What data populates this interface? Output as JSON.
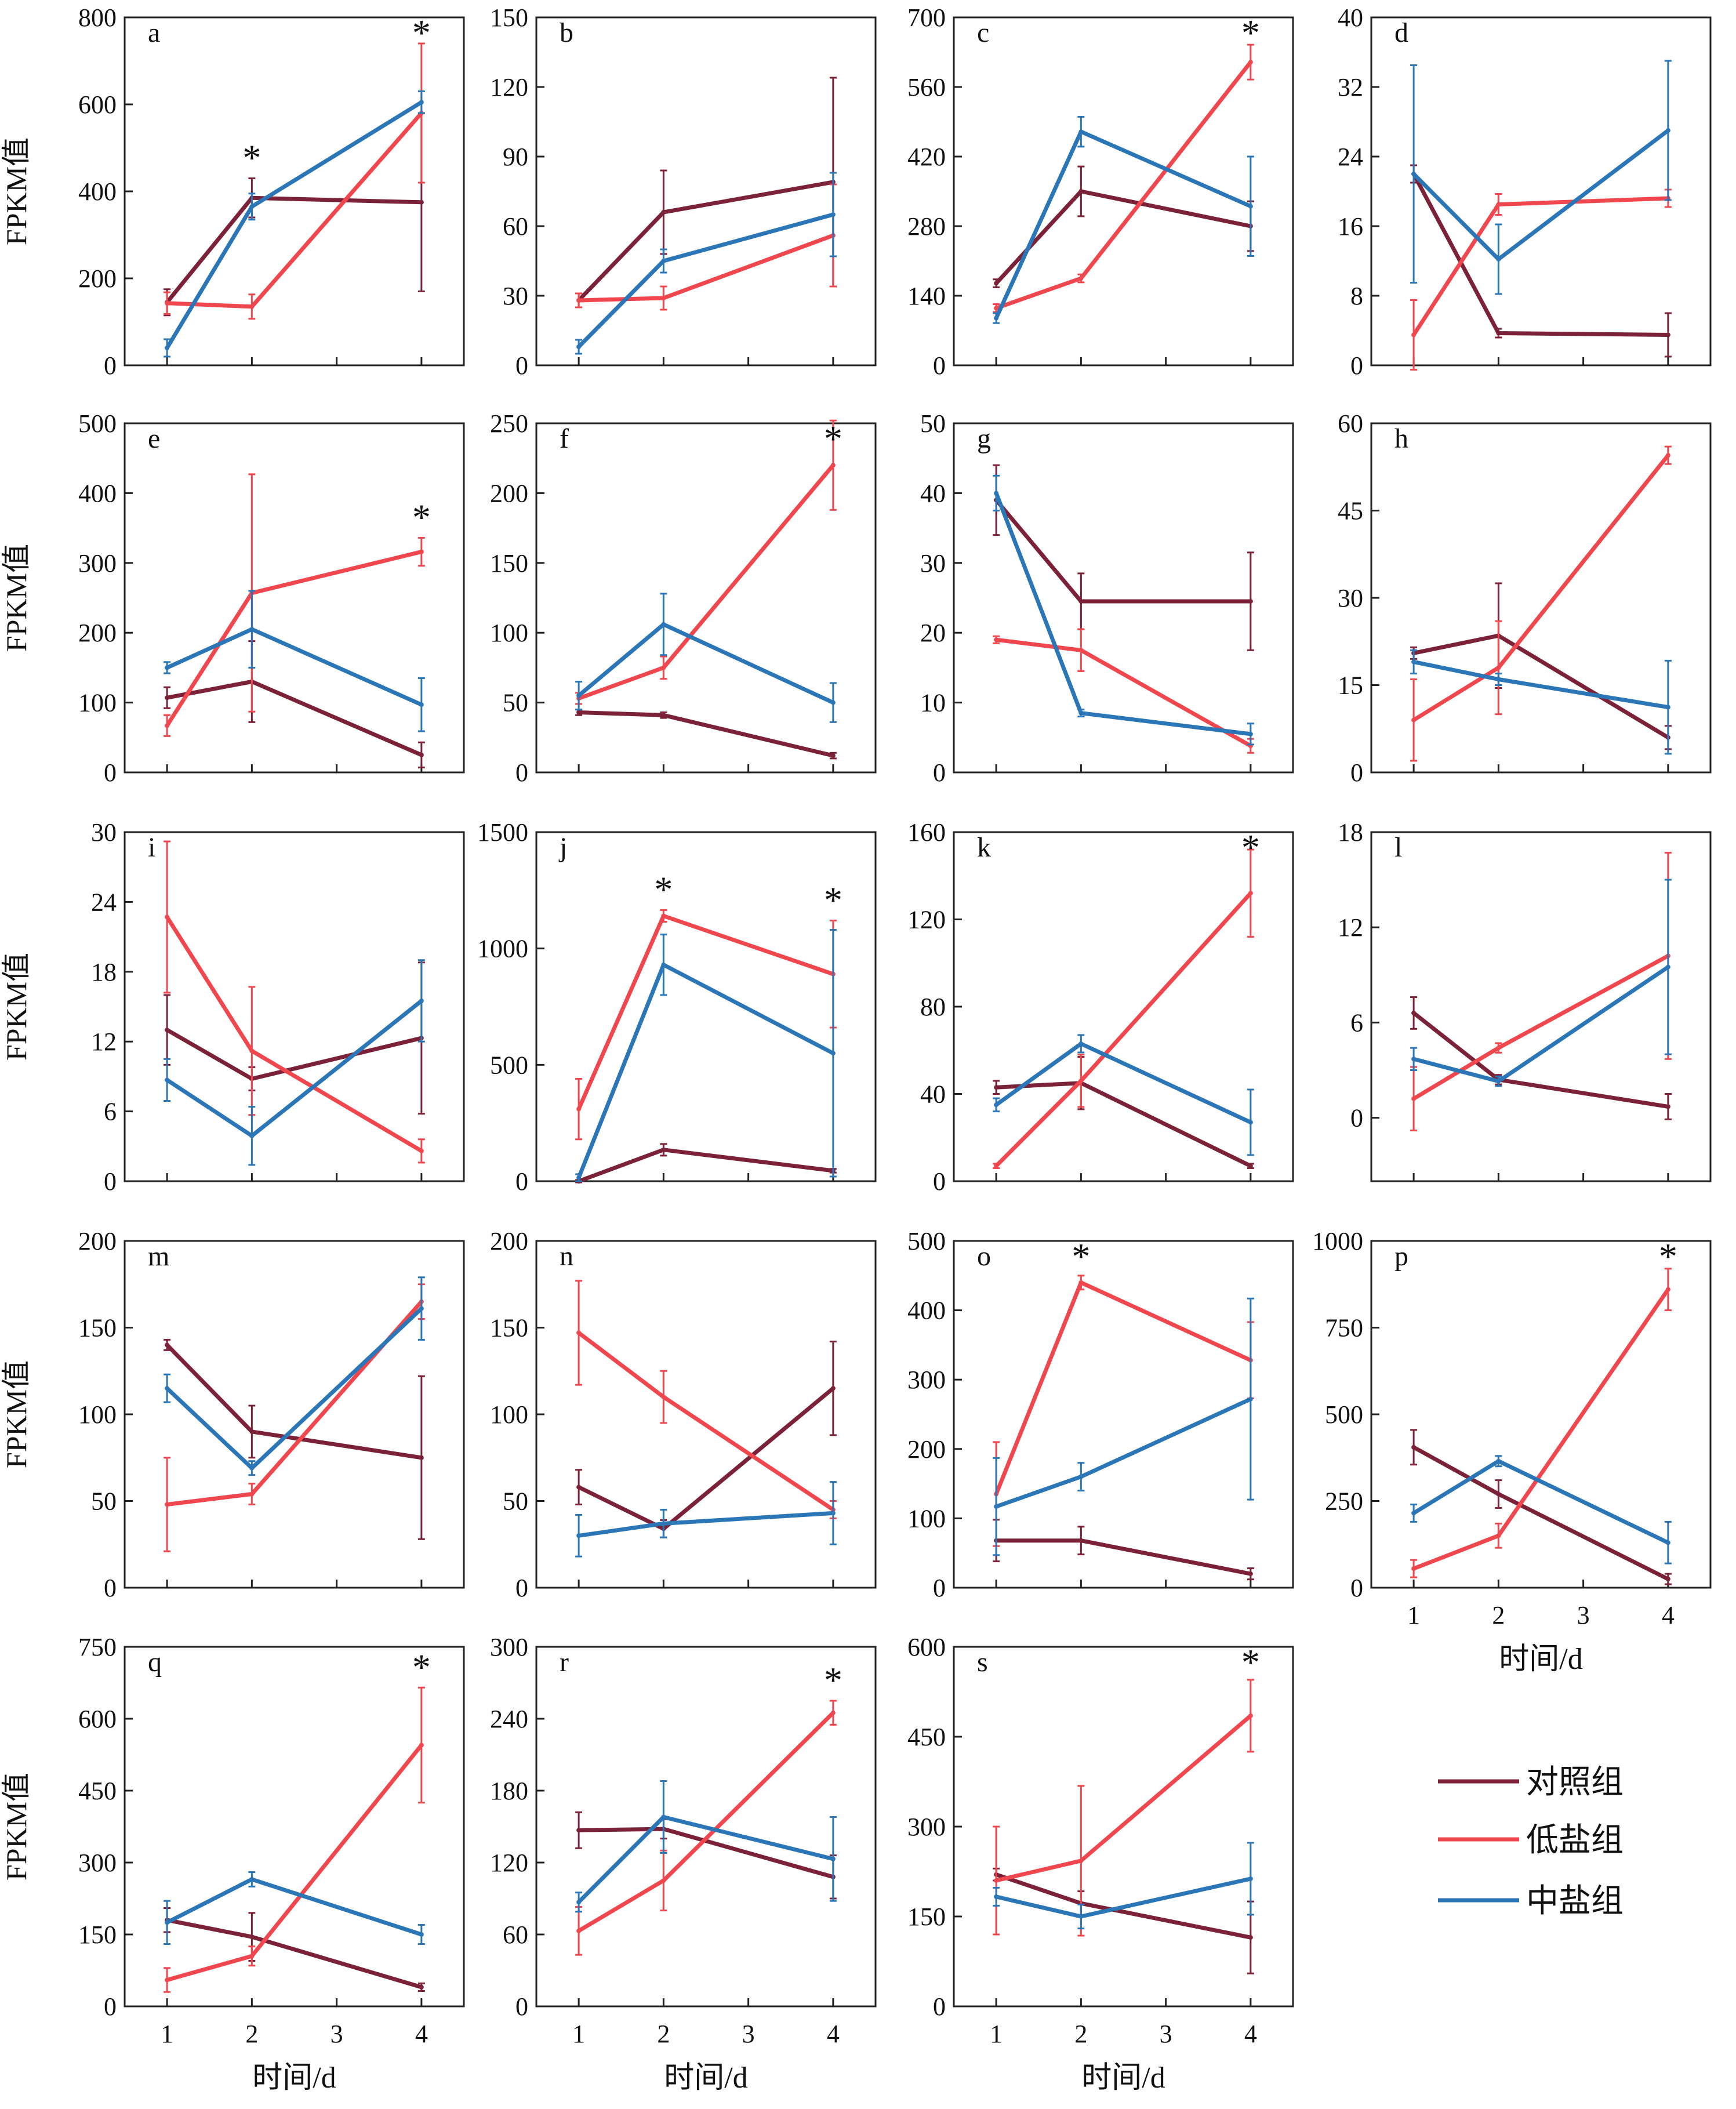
{
  "chart_data": [
    {
      "id": "a",
      "type": "line",
      "x": [
        1,
        2,
        4
      ],
      "ylim": [
        0,
        800
      ],
      "yticks": [
        0,
        200,
        400,
        600,
        800
      ],
      "ylabel": "FPKM值",
      "xlabel": "",
      "stars_at": [
        2,
        4
      ],
      "series": [
        {
          "name": "对照组",
          "values": [
            145,
            385,
            375
          ],
          "err": [
            30,
            45,
            205
          ]
        },
        {
          "name": "低盐组",
          "values": [
            143,
            135,
            580
          ],
          "err": [
            25,
            28,
            160
          ]
        },
        {
          "name": "中盐组",
          "values": [
            40,
            365,
            605
          ],
          "err": [
            20,
            30,
            25
          ]
        }
      ]
    },
    {
      "id": "b",
      "type": "line",
      "x": [
        1,
        2,
        4
      ],
      "ylim": [
        0,
        150
      ],
      "yticks": [
        0,
        30,
        60,
        90,
        120,
        150
      ],
      "ylabel": "",
      "xlabel": "",
      "stars_at": [],
      "series": [
        {
          "name": "对照组",
          "values": [
            28,
            66,
            79
          ],
          "err": [
            3,
            18,
            45
          ]
        },
        {
          "name": "低盐组",
          "values": [
            28,
            29,
            56
          ],
          "err": [
            3,
            5,
            22
          ]
        },
        {
          "name": "中盐组",
          "values": [
            8,
            45,
            65
          ],
          "err": [
            3,
            5,
            18
          ]
        }
      ]
    },
    {
      "id": "c",
      "type": "line",
      "x": [
        1,
        2,
        4
      ],
      "ylim": [
        0,
        700
      ],
      "yticks": [
        0,
        140,
        280,
        420,
        560,
        700
      ],
      "ylabel": "",
      "xlabel": "",
      "stars_at": [
        4
      ],
      "series": [
        {
          "name": "对照组",
          "values": [
            165,
            350,
            280
          ],
          "err": [
            8,
            50,
            50
          ]
        },
        {
          "name": "低盐组",
          "values": [
            115,
            175,
            610
          ],
          "err": [
            8,
            8,
            35
          ]
        },
        {
          "name": "中盐组",
          "values": [
            95,
            470,
            320
          ],
          "err": [
            10,
            30,
            100
          ]
        }
      ]
    },
    {
      "id": "d",
      "type": "line",
      "x": [
        1,
        2,
        4
      ],
      "ylim": [
        0,
        40
      ],
      "yticks": [
        0,
        8,
        16,
        24,
        32,
        40
      ],
      "ylabel": "",
      "xlabel": "",
      "stars_at": [],
      "series": [
        {
          "name": "对照组",
          "values": [
            22,
            3.7,
            3.5
          ],
          "err": [
            1,
            0.5,
            2.5
          ]
        },
        {
          "name": "低盐组",
          "values": [
            3.5,
            18.5,
            19.2
          ],
          "err": [
            4,
            1.2,
            1
          ]
        },
        {
          "name": "中盐组",
          "values": [
            22,
            12.2,
            27
          ],
          "err": [
            12.5,
            4,
            8
          ]
        }
      ]
    },
    {
      "id": "e",
      "type": "line",
      "x": [
        1,
        2,
        4
      ],
      "ylim": [
        0,
        500
      ],
      "yticks": [
        0,
        100,
        200,
        300,
        400,
        500
      ],
      "ylabel": "FPKM值",
      "xlabel": "",
      "stars_at": [
        4
      ],
      "series": [
        {
          "name": "对照组",
          "values": [
            107,
            130,
            25
          ],
          "err": [
            15,
            58,
            18
          ]
        },
        {
          "name": "低盐组",
          "values": [
            67,
            257,
            316
          ],
          "err": [
            15,
            170,
            20
          ]
        },
        {
          "name": "中盐组",
          "values": [
            150,
            205,
            97
          ],
          "err": [
            8,
            55,
            38
          ]
        }
      ]
    },
    {
      "id": "f",
      "type": "line",
      "x": [
        1,
        2,
        4
      ],
      "ylim": [
        0,
        250
      ],
      "yticks": [
        0,
        50,
        100,
        150,
        200,
        250
      ],
      "ylabel": "",
      "xlabel": "",
      "stars_at": [
        4
      ],
      "series": [
        {
          "name": "对照组",
          "values": [
            43,
            41,
            12
          ],
          "err": [
            2,
            2,
            2
          ]
        },
        {
          "name": "低盐组",
          "values": [
            53,
            75,
            220
          ],
          "err": [
            4,
            8,
            32
          ]
        },
        {
          "name": "中盐组",
          "values": [
            55,
            106,
            50
          ],
          "err": [
            10,
            22,
            14
          ]
        }
      ]
    },
    {
      "id": "g",
      "type": "line",
      "x": [
        1,
        2,
        4
      ],
      "ylim": [
        0,
        50
      ],
      "yticks": [
        0,
        10,
        20,
        30,
        40,
        50
      ],
      "ylabel": "",
      "xlabel": "",
      "stars_at": [],
      "series": [
        {
          "name": "对照组",
          "values": [
            39,
            24.5,
            24.5
          ],
          "err": [
            5,
            4,
            7
          ]
        },
        {
          "name": "低盐组",
          "values": [
            19,
            17.5,
            3.8
          ],
          "err": [
            0.5,
            3,
            1
          ]
        },
        {
          "name": "中盐组",
          "values": [
            40,
            8.5,
            5.5
          ],
          "err": [
            2.5,
            0.5,
            1.5
          ]
        }
      ]
    },
    {
      "id": "h",
      "type": "line",
      "x": [
        1,
        2,
        4
      ],
      "ylim": [
        0,
        60
      ],
      "yticks": [
        0,
        15,
        30,
        45,
        60
      ],
      "ylabel": "",
      "xlabel": "",
      "stars_at": [],
      "series": [
        {
          "name": "对照组",
          "values": [
            20.5,
            23.5,
            6
          ],
          "err": [
            1,
            9,
            2
          ]
        },
        {
          "name": "低盐组",
          "values": [
            9,
            18,
            54.5
          ],
          "err": [
            7,
            8,
            1.5
          ]
        },
        {
          "name": "中盐组",
          "values": [
            19,
            16,
            11.2
          ],
          "err": [
            2,
            1,
            8
          ]
        }
      ]
    },
    {
      "id": "i",
      "type": "line",
      "x": [
        1,
        2,
        4
      ],
      "ylim": [
        0,
        30
      ],
      "yticks": [
        0,
        6,
        12,
        18,
        24,
        30
      ],
      "ylabel": "FPKM值",
      "xlabel": "",
      "stars_at": [],
      "series": [
        {
          "name": "对照组",
          "values": [
            13,
            8.8,
            12.3
          ],
          "err": [
            3,
            1,
            6.5
          ]
        },
        {
          "name": "低盐组",
          "values": [
            22.7,
            11.2,
            2.6
          ],
          "err": [
            6.5,
            5.5,
            1
          ]
        },
        {
          "name": "中盐组",
          "values": [
            8.7,
            3.9,
            15.5
          ],
          "err": [
            1.8,
            2.5,
            3.5
          ]
        }
      ]
    },
    {
      "id": "j",
      "type": "line",
      "x": [
        1,
        2,
        4
      ],
      "ylim": [
        0,
        1500
      ],
      "yticks": [
        0,
        500,
        1000,
        1500
      ],
      "ylabel": "",
      "xlabel": "",
      "stars_at": [
        2,
        4
      ],
      "series": [
        {
          "name": "对照组",
          "values": [
            0,
            135,
            45
          ],
          "err": [
            5,
            25,
            8
          ]
        },
        {
          "name": "低盐组",
          "values": [
            310,
            1140,
            890
          ],
          "err": [
            130,
            25,
            230
          ]
        },
        {
          "name": "中盐组",
          "values": [
            15,
            930,
            550
          ],
          "err": [
            15,
            130,
            530
          ]
        }
      ]
    },
    {
      "id": "k",
      "type": "line",
      "x": [
        1,
        2,
        4
      ],
      "ylim": [
        0,
        160
      ],
      "yticks": [
        0,
        40,
        80,
        120,
        160
      ],
      "ylabel": "",
      "xlabel": "",
      "stars_at": [
        4
      ],
      "series": [
        {
          "name": "对照组",
          "values": [
            43,
            45,
            7
          ],
          "err": [
            3,
            12,
            1
          ]
        },
        {
          "name": "低盐组",
          "values": [
            7,
            46,
            132
          ],
          "err": [
            1,
            12,
            20
          ]
        },
        {
          "name": "中盐组",
          "values": [
            35,
            63,
            27
          ],
          "err": [
            3,
            4,
            15
          ]
        }
      ]
    },
    {
      "id": "l",
      "type": "line",
      "x": [
        1,
        2,
        4
      ],
      "ylim": [
        -4,
        18
      ],
      "yticks": [
        0,
        6,
        12,
        18
      ],
      "ylabel": "",
      "xlabel": "",
      "stars_at": [],
      "series": [
        {
          "name": "对照组",
          "values": [
            6.6,
            2.4,
            0.7
          ],
          "err": [
            1,
            0.3,
            0.8
          ]
        },
        {
          "name": "低盐组",
          "values": [
            1.2,
            4.4,
            10.2
          ],
          "err": [
            2,
            0.3,
            6.5
          ]
        },
        {
          "name": "中盐组",
          "values": [
            3.7,
            2.3,
            9.5
          ],
          "err": [
            0.7,
            0.3,
            5.5
          ]
        }
      ]
    },
    {
      "id": "m",
      "type": "line",
      "x": [
        1,
        2,
        4
      ],
      "ylim": [
        0,
        200
      ],
      "yticks": [
        0,
        50,
        100,
        150,
        200
      ],
      "ylabel": "FPKM值",
      "xlabel": "",
      "stars_at": [],
      "series": [
        {
          "name": "对照组",
          "values": [
            140,
            90,
            75
          ],
          "err": [
            3,
            15,
            47
          ]
        },
        {
          "name": "低盐组",
          "values": [
            48,
            54,
            165
          ],
          "err": [
            27,
            6,
            10
          ]
        },
        {
          "name": "中盐组",
          "values": [
            115,
            69,
            161
          ],
          "err": [
            8,
            4,
            18
          ]
        }
      ]
    },
    {
      "id": "n",
      "type": "line",
      "x": [
        1,
        2,
        4
      ],
      "ylim": [
        0,
        200
      ],
      "yticks": [
        0,
        50,
        100,
        150,
        200
      ],
      "ylabel": "",
      "xlabel": "",
      "stars_at": [],
      "series": [
        {
          "name": "对照组",
          "values": [
            58,
            34,
            115
          ],
          "err": [
            10,
            5,
            27
          ]
        },
        {
          "name": "低盐组",
          "values": [
            147,
            110,
            45
          ],
          "err": [
            30,
            15,
            5
          ]
        },
        {
          "name": "中盐组",
          "values": [
            30,
            37,
            43
          ],
          "err": [
            12,
            8,
            18
          ]
        }
      ]
    },
    {
      "id": "o",
      "type": "line",
      "x": [
        1,
        2,
        4
      ],
      "ylim": [
        0,
        500
      ],
      "yticks": [
        0,
        100,
        200,
        300,
        400,
        500
      ],
      "ylabel": "",
      "xlabel": "",
      "stars_at": [
        2
      ],
      "series": [
        {
          "name": "对照组",
          "values": [
            68,
            68,
            20
          ],
          "err": [
            30,
            20,
            8
          ]
        },
        {
          "name": "低盐组",
          "values": [
            135,
            440,
            328
          ],
          "err": [
            75,
            10,
            55
          ]
        },
        {
          "name": "中盐组",
          "values": [
            117,
            160,
            272
          ],
          "err": [
            70,
            20,
            145
          ]
        }
      ]
    },
    {
      "id": "p",
      "type": "line",
      "x": [
        1,
        2,
        4
      ],
      "ylim": [
        0,
        1000
      ],
      "yticks": [
        0,
        250,
        500,
        750,
        1000
      ],
      "xticks": [
        1,
        2,
        3,
        4
      ],
      "ylabel": "",
      "xlabel": "时间/d",
      "stars_at": [
        4
      ],
      "series": [
        {
          "name": "对照组",
          "values": [
            405,
            270,
            25
          ],
          "err": [
            50,
            40,
            15
          ]
        },
        {
          "name": "低盐组",
          "values": [
            55,
            150,
            860
          ],
          "err": [
            25,
            35,
            60
          ]
        },
        {
          "name": "中盐组",
          "values": [
            215,
            365,
            130
          ],
          "err": [
            25,
            15,
            60
          ]
        }
      ]
    },
    {
      "id": "q",
      "type": "line",
      "x": [
        1,
        2,
        4
      ],
      "ylim": [
        0,
        750
      ],
      "yticks": [
        0,
        150,
        300,
        450,
        600,
        750
      ],
      "xticks": [
        1,
        2,
        3,
        4
      ],
      "ylabel": "FPKM值",
      "xlabel": "时间/d",
      "stars_at": [
        4
      ],
      "series": [
        {
          "name": "对照组",
          "values": [
            180,
            145,
            40
          ],
          "err": [
            25,
            50,
            8
          ]
        },
        {
          "name": "低盐组",
          "values": [
            55,
            105,
            545
          ],
          "err": [
            25,
            20,
            120
          ]
        },
        {
          "name": "中盐组",
          "values": [
            175,
            265,
            150
          ],
          "err": [
            45,
            15,
            20
          ]
        }
      ]
    },
    {
      "id": "r",
      "type": "line",
      "x": [
        1,
        2,
        4
      ],
      "ylim": [
        0,
        300
      ],
      "yticks": [
        0,
        60,
        120,
        180,
        240,
        300
      ],
      "xticks": [
        1,
        2,
        3,
        4
      ],
      "ylabel": "",
      "xlabel": "时间/d",
      "stars_at": [
        4
      ],
      "series": [
        {
          "name": "对照组",
          "values": [
            147,
            148,
            108
          ],
          "err": [
            15,
            8,
            18
          ]
        },
        {
          "name": "低盐组",
          "values": [
            63,
            105,
            245
          ],
          "err": [
            20,
            25,
            10
          ]
        },
        {
          "name": "中盐组",
          "values": [
            87,
            158,
            123
          ],
          "err": [
            8,
            30,
            35
          ]
        }
      ]
    },
    {
      "id": "s",
      "type": "line",
      "x": [
        1,
        2,
        4
      ],
      "ylim": [
        0,
        600
      ],
      "yticks": [
        0,
        150,
        300,
        450,
        600
      ],
      "xticks": [
        1,
        2,
        3,
        4
      ],
      "ylabel": "",
      "xlabel": "时间/d",
      "stars_at": [
        4
      ],
      "series": [
        {
          "name": "对照组",
          "values": [
            220,
            172,
            115
          ],
          "err": [
            10,
            20,
            60
          ]
        },
        {
          "name": "低盐组",
          "values": [
            210,
            243,
            485
          ],
          "err": [
            90,
            125,
            60
          ]
        },
        {
          "name": "中盐组",
          "values": [
            183,
            150,
            213
          ],
          "err": [
            15,
            20,
            60
          ]
        }
      ]
    }
  ],
  "legend": [
    {
      "name": "对照组",
      "color": "#7b2238"
    },
    {
      "name": "低盐组",
      "color": "#f0474f"
    },
    {
      "name": "中盐组",
      "color": "#2b76b6"
    }
  ],
  "colors": {
    "对照组": "#7b2238",
    "低盐组": "#f0474f",
    "中盐组": "#2b76b6"
  }
}
